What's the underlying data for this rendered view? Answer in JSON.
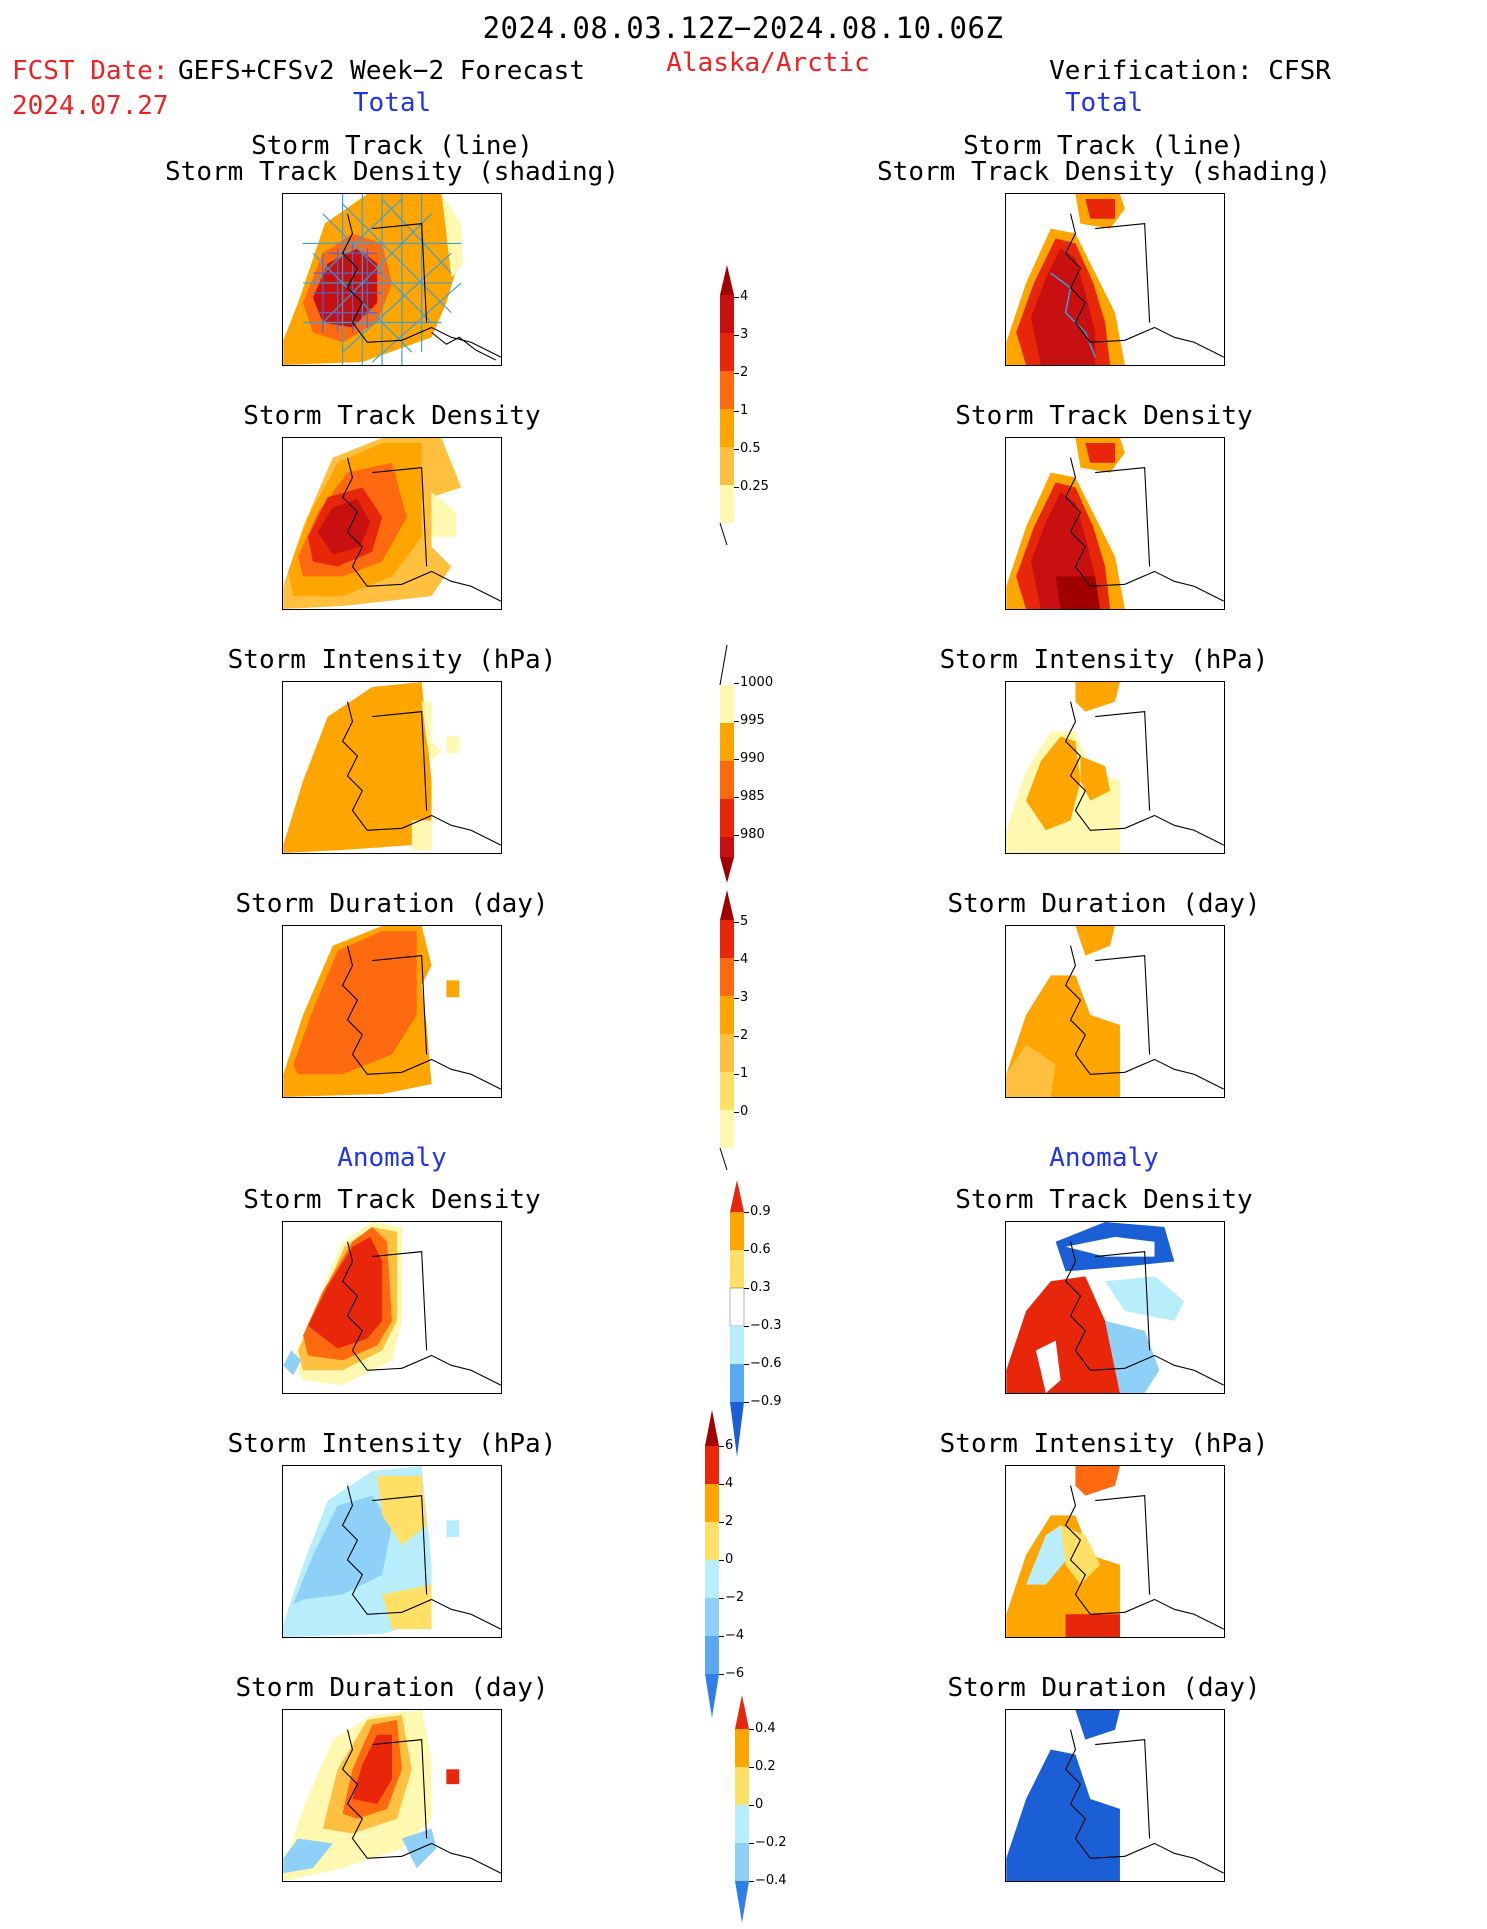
{
  "header": {
    "period": "2024.08.03.12Z−2024.08.10.06Z",
    "fcst_label": "FCST Date:",
    "fcst_model": "GEFS+CFSv2 Week−2 Forecast",
    "fcst_date": "2024.07.27",
    "region": "Alaska/Arctic",
    "verification": "Verification: CFSR",
    "total_left": "Total",
    "total_right": "Total",
    "anomaly_left": "Anomaly",
    "anomaly_right": "Anomaly"
  },
  "panels": {
    "r1_line1": "Storm Track (line)",
    "r1_line2": "Storm Track Density (shading)",
    "r2": "Storm Track Density",
    "r3": "Storm Intensity (hPa)",
    "r4": "Storm Duration (day)",
    "r5": "Storm Track Density",
    "r6": "Storm Intensity (hPa)",
    "r7": "Storm Duration (day)"
  },
  "colors": {
    "y1": "#fff8b0",
    "y2": "#ffe066",
    "y3": "#ffc040",
    "o1": "#ffa500",
    "o2": "#ff6a10",
    "r1": "#e8260a",
    "r2": "#c81010",
    "dr": "#a00000",
    "b1": "#b8eefc",
    "b2": "#8ed0f8",
    "b3": "#5aa8f0",
    "b4": "#2f7fe8",
    "b5": "#1a5fd6",
    "track": "#3aa0dd",
    "track_dark": "#5566cc"
  },
  "chart_data": [
    {
      "type": "heatmap",
      "name": "colorbar-track-density-total",
      "tick_labels": [
        "4",
        "3",
        "2",
        "1",
        "0.5",
        "0.25"
      ]
    },
    {
      "type": "heatmap",
      "name": "colorbar-intensity-total",
      "tick_labels": [
        "1000",
        "995",
        "990",
        "985",
        "980"
      ]
    },
    {
      "type": "heatmap",
      "name": "colorbar-duration-total",
      "tick_labels": [
        "5",
        "4",
        "3",
        "2",
        "1",
        "0"
      ]
    },
    {
      "type": "heatmap",
      "name": "colorbar-track-density-anomaly",
      "tick_labels": [
        "0.9",
        "0.6",
        "0.3",
        "−0.3",
        "−0.6",
        "−0.9"
      ]
    },
    {
      "type": "heatmap",
      "name": "colorbar-intensity-anomaly",
      "tick_labels": [
        "6",
        "4",
        "2",
        "0",
        "−2",
        "−4",
        "−6"
      ]
    },
    {
      "type": "heatmap",
      "name": "colorbar-duration-anomaly",
      "tick_labels": [
        "0.4",
        "0.2",
        "0",
        "−0.2",
        "−0.4"
      ]
    }
  ]
}
